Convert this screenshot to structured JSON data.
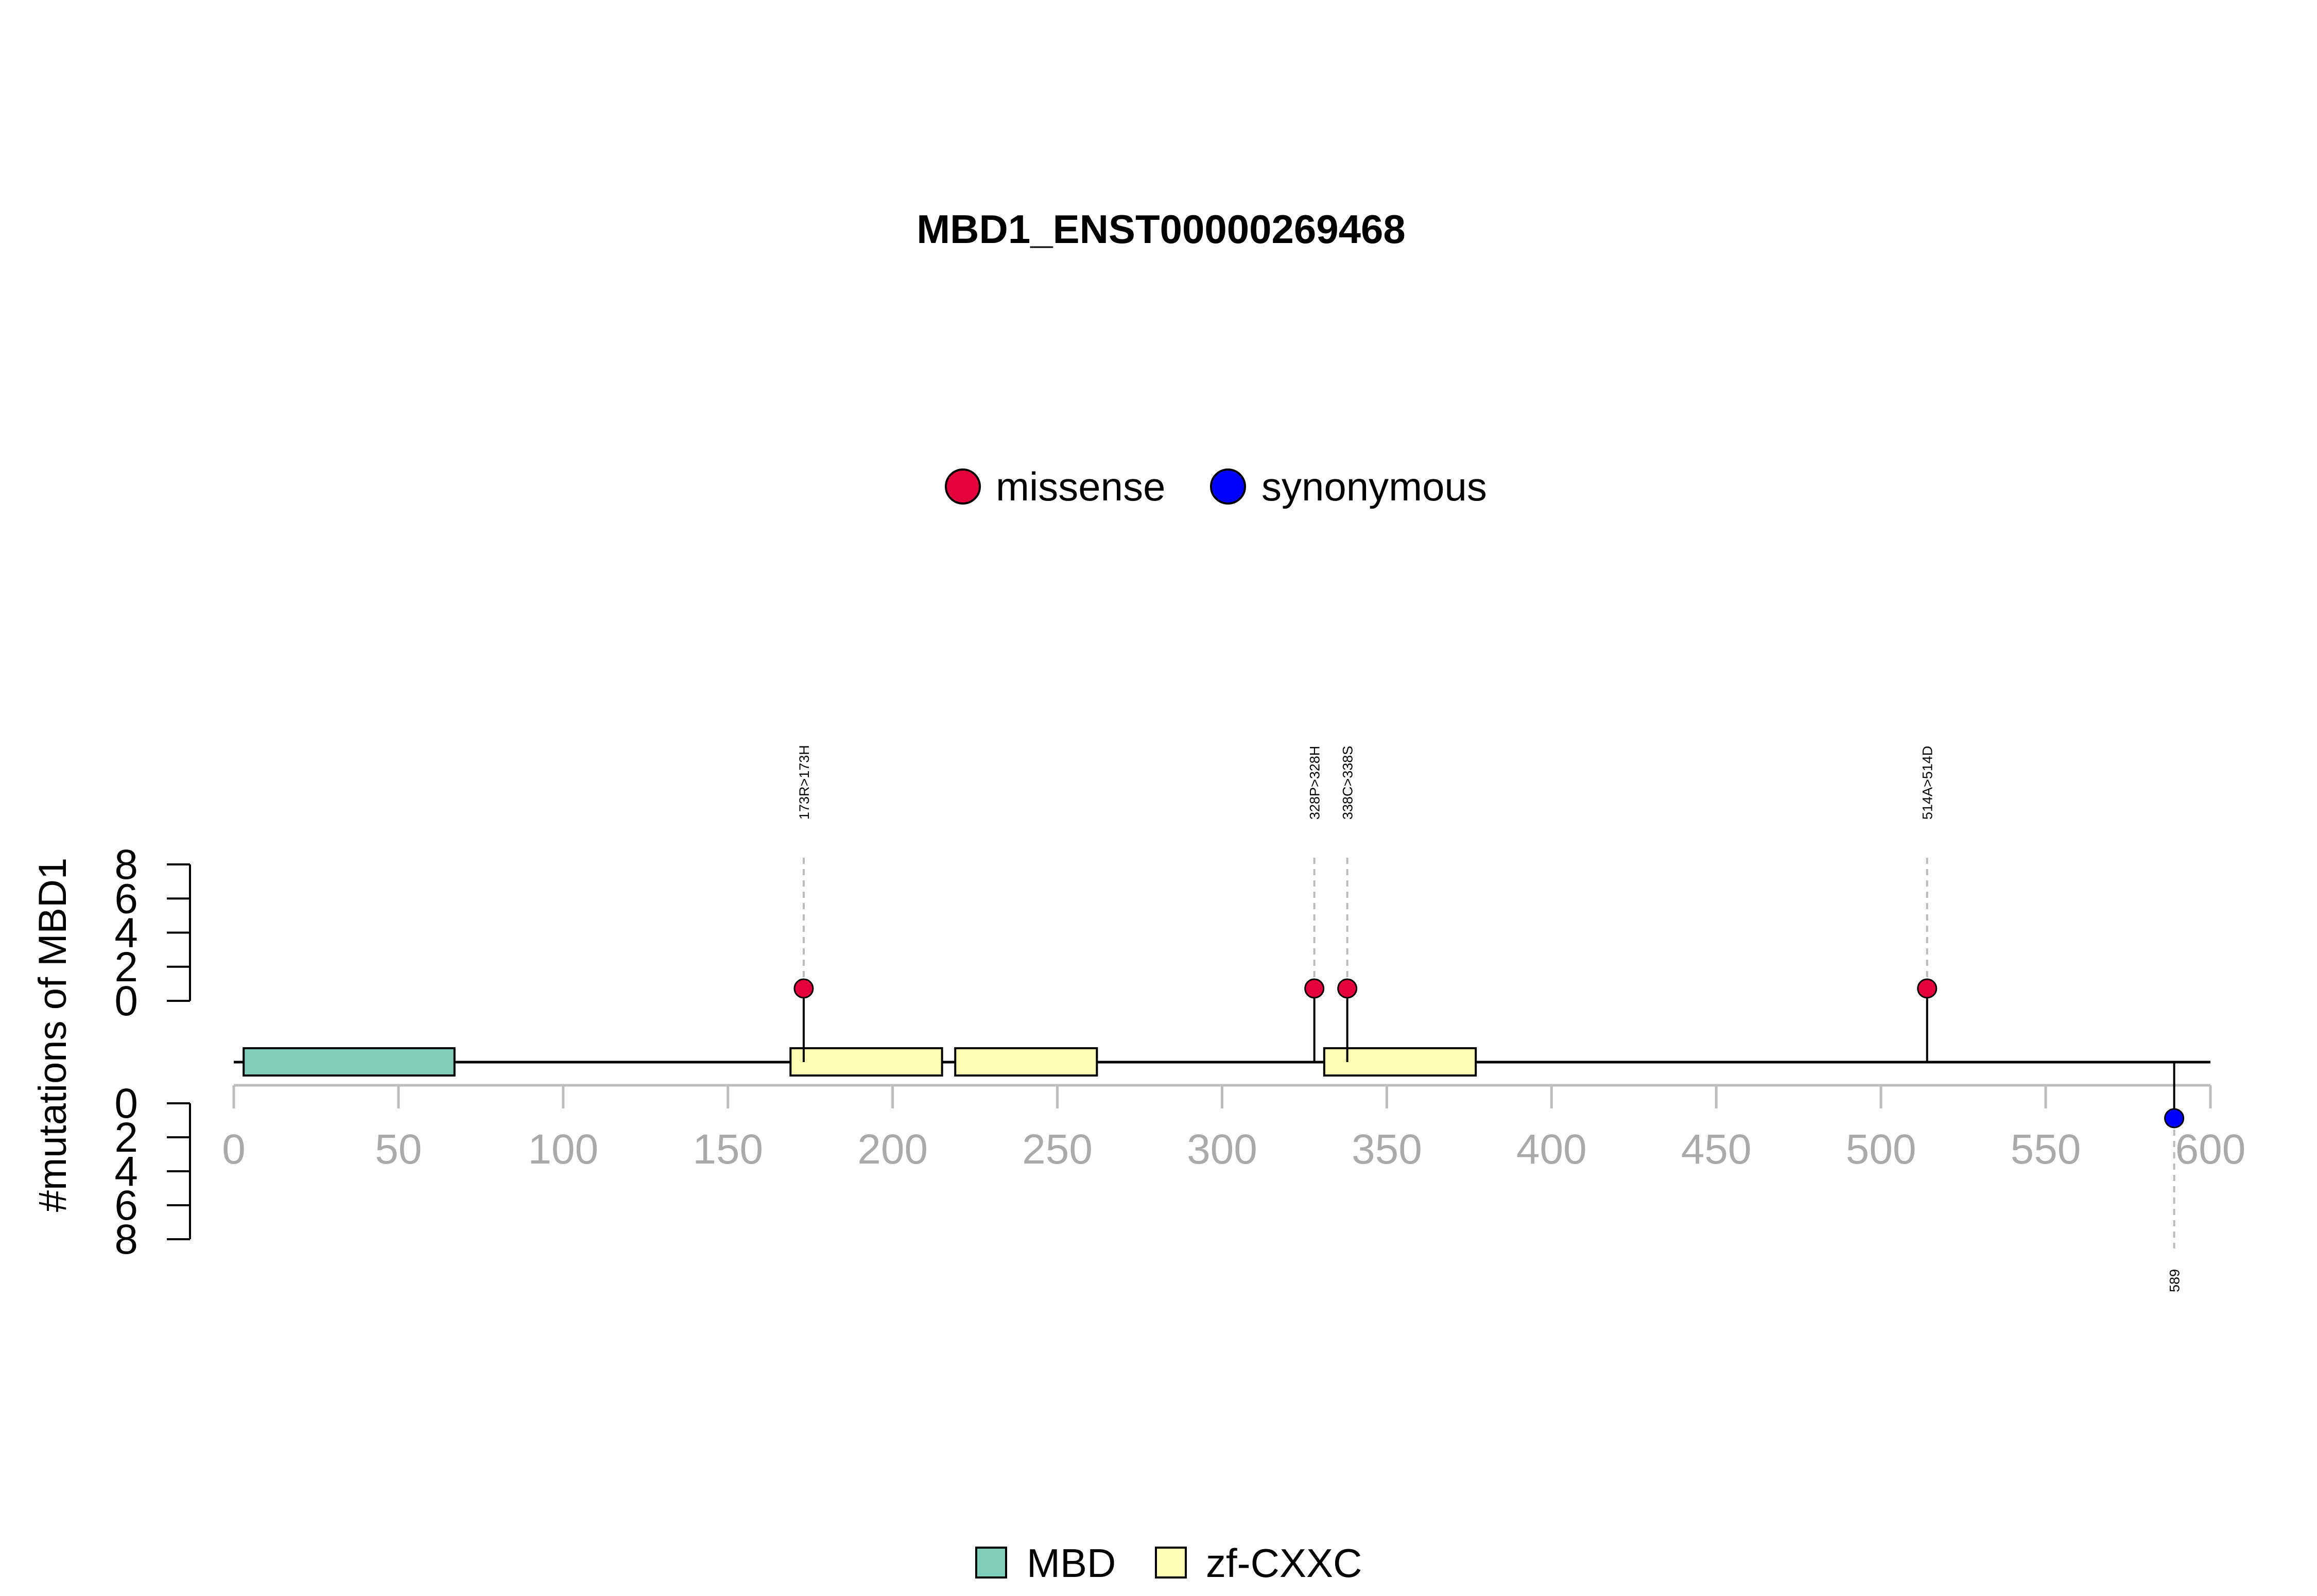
{
  "chart_data": {
    "type": "lollipop",
    "title": "MBD1_ENST00000269468",
    "ylabel": "#mutations of MBD1",
    "xlim": [
      0,
      600
    ],
    "x_ticks": [
      "0",
      "50",
      "100",
      "150",
      "200",
      "250",
      "300",
      "350",
      "400",
      "450",
      "500",
      "550",
      "600"
    ],
    "y_ticks_upper": [
      "0",
      "2",
      "4",
      "6",
      "8"
    ],
    "y_ticks_lower": [
      "0",
      "2",
      "4",
      "6",
      "8"
    ],
    "ylim": [
      0,
      8
    ],
    "legend_mutations": [
      {
        "label": "missense",
        "color": "#e3003c"
      },
      {
        "label": "synonymous",
        "color": "#0000ff"
      }
    ],
    "legend_domains": [
      {
        "label": "MBD",
        "color": "#7fcdbb"
      },
      {
        "label": "zf-CXXC",
        "color": "#ffffb3"
      }
    ],
    "domains": [
      {
        "name": "MBD",
        "start": 3,
        "end": 67
      },
      {
        "name": "zf-CXXC",
        "start": 169,
        "end": 215
      },
      {
        "name": "zf-CXXC",
        "start": 219,
        "end": 262
      },
      {
        "name": "zf-CXXC",
        "start": 331,
        "end": 377
      }
    ],
    "mutations": [
      {
        "pos": 173,
        "label": "173R>173H",
        "type": "missense",
        "count": 1,
        "side": "top"
      },
      {
        "pos": 328,
        "label": "328P>328H",
        "type": "missense",
        "count": 1,
        "side": "top"
      },
      {
        "pos": 338,
        "label": "338C>338S",
        "type": "missense",
        "count": 1,
        "side": "top"
      },
      {
        "pos": 514,
        "label": "514A>514D",
        "type": "missense",
        "count": 1,
        "side": "top"
      },
      {
        "pos": 589,
        "label": "589",
        "type": "synonymous",
        "count": 1,
        "side": "bottom"
      }
    ]
  }
}
